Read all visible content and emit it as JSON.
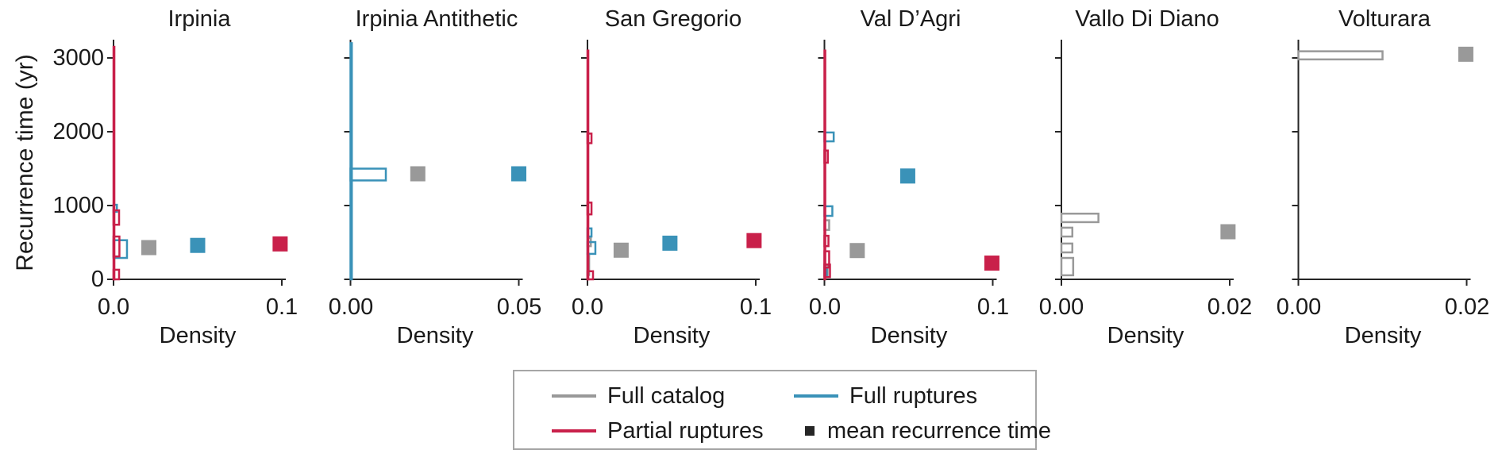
{
  "chart_data": {
    "type": "bar",
    "subtype": "horizontal_histogram_small_multiples",
    "ylabel": "Recurrence time (yr)",
    "xlabel": "Density",
    "ylim": [
      0,
      3245
    ],
    "yticks": [
      0,
      1000,
      2000,
      3000
    ],
    "ytick_labels": [
      "0",
      "1000",
      "2000",
      "3000"
    ],
    "grid": "off",
    "legend_position": "bottom-center",
    "series_colors": {
      "full_catalog": "#999999",
      "full_ruptures": "#3a92b8",
      "partial_ruptures": "#c9204a"
    },
    "style": {
      "axis_color": "#262626",
      "text_color": "#1a1a1a",
      "marker_color": "#262626",
      "legend_border": "#a6a6a6"
    },
    "panels": [
      {
        "title": "Irpinia",
        "xlim": [
          0,
          0.1
        ],
        "xticks": [
          0.0,
          0.1
        ],
        "xtick_labels": [
          "0.0",
          "0.1"
        ],
        "bars": [
          {
            "series": "full_ruptures",
            "y_range": [
              915,
              1010
            ],
            "density": 0.002
          },
          {
            "series": "full_ruptures",
            "y_range": [
              290,
              530
            ],
            "density": 0.008
          },
          {
            "series": "partial_ruptures",
            "y_range": [
              0,
              3150
            ],
            "density": 0.0005
          },
          {
            "series": "partial_ruptures",
            "y_range": [
              740,
              935
            ],
            "density": 0.0033
          },
          {
            "series": "partial_ruptures",
            "y_range": [
              310,
              580
            ],
            "density": 0.0035
          },
          {
            "series": "partial_ruptures",
            "y_range": [
              0,
              130
            ],
            "density": 0.0033
          }
        ],
        "means": [
          {
            "series": "full_catalog",
            "x": 0.021,
            "y": 430
          },
          {
            "series": "full_ruptures",
            "x": 0.05,
            "y": 460
          },
          {
            "series": "partial_ruptures",
            "x": 0.099,
            "y": 480
          }
        ]
      },
      {
        "title": "Irpinia Antithetic",
        "xlim": [
          0,
          0.05
        ],
        "xticks": [
          0.0,
          0.05
        ],
        "xtick_labels": [
          "0.00",
          "0.05"
        ],
        "bars": [
          {
            "series": "full_ruptures",
            "y_range": [
              0,
              3200
            ],
            "density": 0.0004
          },
          {
            "series": "full_ruptures",
            "y_range": [
              1340,
              1500
            ],
            "density": 0.0105
          }
        ],
        "means": [
          {
            "series": "full_catalog",
            "x": 0.02,
            "y": 1430
          },
          {
            "series": "full_ruptures",
            "x": 0.05,
            "y": 1430
          }
        ]
      },
      {
        "title": "San Gregorio",
        "xlim": [
          0,
          0.1
        ],
        "xticks": [
          0.0,
          0.1
        ],
        "xtick_labels": [
          "0.0",
          "0.1"
        ],
        "bars": [
          {
            "series": "full_catalog",
            "y_range": [
              450,
              560
            ],
            "density": 0.002
          },
          {
            "series": "full_catalog",
            "y_range": [
              60,
              345
            ],
            "density": 0.001
          },
          {
            "series": "full_ruptures",
            "y_range": [
              580,
              690
            ],
            "density": 0.0024
          },
          {
            "series": "full_ruptures",
            "y_range": [
              345,
              505
            ],
            "density": 0.0047
          },
          {
            "series": "partial_ruptures",
            "y_range": [
              0,
              3100
            ],
            "density": 0.0005
          },
          {
            "series": "partial_ruptures",
            "y_range": [
              1845,
              1975
            ],
            "density": 0.0024
          },
          {
            "series": "partial_ruptures",
            "y_range": [
              880,
              1040
            ],
            "density": 0.0024
          },
          {
            "series": "partial_ruptures",
            "y_range": [
              0,
              110
            ],
            "density": 0.0033
          }
        ],
        "means": [
          {
            "series": "full_catalog",
            "x": 0.02,
            "y": 395
          },
          {
            "series": "full_ruptures",
            "x": 0.049,
            "y": 490
          },
          {
            "series": "partial_ruptures",
            "x": 0.099,
            "y": 525
          }
        ]
      },
      {
        "title": "Val D’Agri",
        "xlim": [
          0,
          0.1
        ],
        "xticks": [
          0.0,
          0.1
        ],
        "xtick_labels": [
          "0.0",
          "0.1"
        ],
        "bars": [
          {
            "series": "full_catalog",
            "y_range": [
              670,
              800
            ],
            "density": 0.0028
          },
          {
            "series": "full_catalog",
            "y_range": [
              50,
              200
            ],
            "density": 0.0019
          },
          {
            "series": "full_ruptures",
            "y_range": [
              1870,
              1990
            ],
            "density": 0.0055
          },
          {
            "series": "full_ruptures",
            "y_range": [
              860,
              990
            ],
            "density": 0.0047
          },
          {
            "series": "full_ruptures",
            "y_range": [
              40,
              150
            ],
            "density": 0.0014
          },
          {
            "series": "partial_ruptures",
            "y_range": [
              0,
              3100
            ],
            "density": 0.0005
          },
          {
            "series": "partial_ruptures",
            "y_range": [
              1580,
              1745
            ],
            "density": 0.002
          },
          {
            "series": "partial_ruptures",
            "y_range": [
              450,
              590
            ],
            "density": 0.0024
          },
          {
            "series": "partial_ruptures",
            "y_range": [
              160,
              380
            ],
            "density": 0.0028
          },
          {
            "series": "partial_ruptures",
            "y_range": [
              30,
              200
            ],
            "density": 0.0033
          }
        ],
        "means": [
          {
            "series": "full_catalog",
            "x": 0.0195,
            "y": 390
          },
          {
            "series": "full_ruptures",
            "x": 0.0495,
            "y": 1400
          },
          {
            "series": "partial_ruptures",
            "x": 0.0995,
            "y": 220
          }
        ]
      },
      {
        "title": "Vallo Di Diano",
        "xlim": [
          0,
          0.02
        ],
        "xticks": [
          0.0,
          0.02
        ],
        "xtick_labels": [
          "0.00",
          "0.02"
        ],
        "bars": [
          {
            "series": "full_catalog",
            "y_range": [
              775,
              890
            ],
            "density": 0.0044
          },
          {
            "series": "full_catalog",
            "y_range": [
              580,
              700
            ],
            "density": 0.0013
          },
          {
            "series": "full_catalog",
            "y_range": [
              365,
              485
            ],
            "density": 0.0013
          },
          {
            "series": "full_catalog",
            "y_range": [
              55,
              290
            ],
            "density": 0.0014
          }
        ],
        "means": [
          {
            "series": "full_catalog",
            "x": 0.0198,
            "y": 645
          }
        ]
      },
      {
        "title": "Volturara",
        "xlim": [
          0,
          0.02
        ],
        "xticks": [
          0.0,
          0.02
        ],
        "xtick_labels": [
          "0.00",
          "0.02"
        ],
        "bars": [
          {
            "series": "full_catalog",
            "y_range": [
              2980,
              3090
            ],
            "density": 0.01
          }
        ],
        "means": [
          {
            "series": "full_catalog",
            "x": 0.0199,
            "y": 3050
          }
        ]
      }
    ]
  },
  "legend": {
    "items": [
      {
        "label": "Full catalog",
        "series": "full_catalog",
        "swatch": "line"
      },
      {
        "label": "Full ruptures",
        "series": "full_ruptures",
        "swatch": "line"
      },
      {
        "label": "Partial ruptures",
        "series": "partial_ruptures",
        "swatch": "line"
      },
      {
        "label": "mean recurrence time",
        "series": "marker",
        "swatch": "square"
      }
    ]
  }
}
